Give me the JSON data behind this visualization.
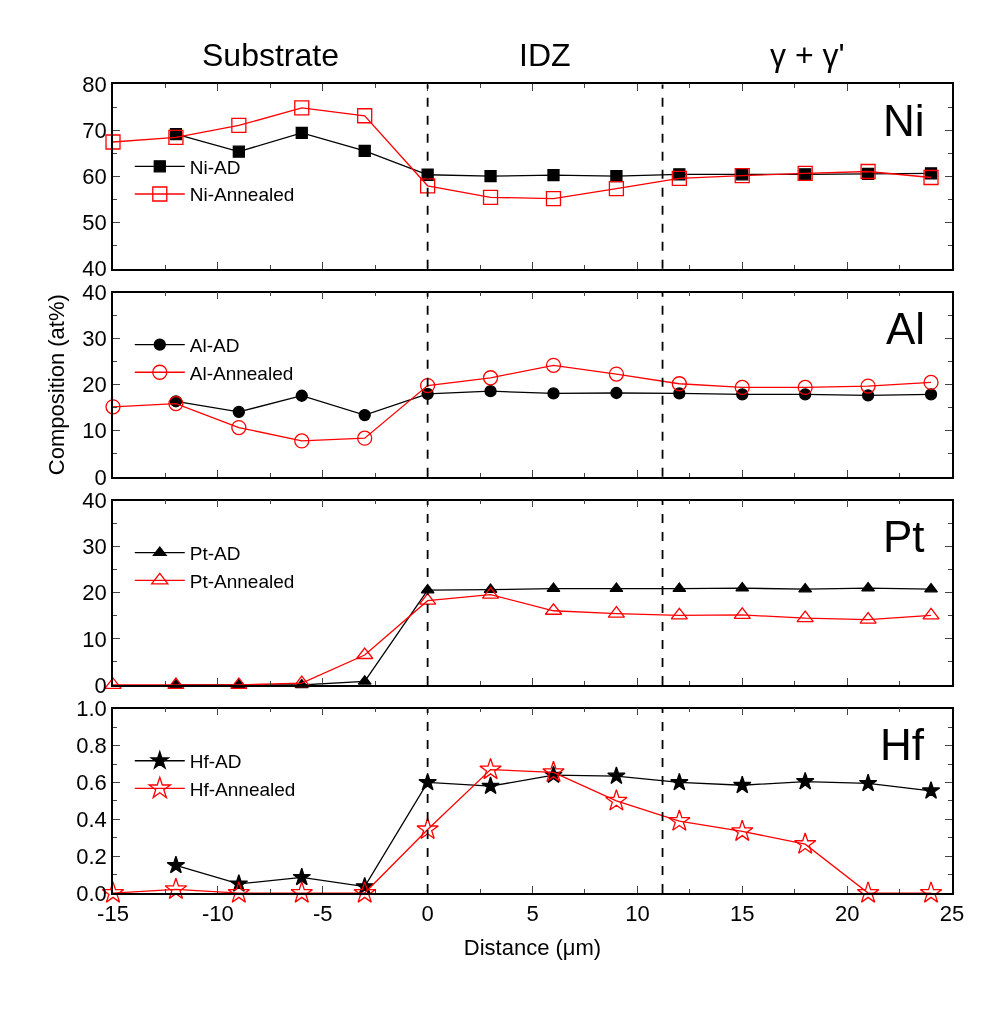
{
  "chart_data": [
    {
      "type": "line",
      "annotations": [
        "Ni",
        "Substrate",
        "IDZ",
        "γ + γ'"
      ],
      "xlim": [
        -15,
        25
      ],
      "xticks": [
        -15,
        -10,
        -5,
        0,
        5,
        10,
        15,
        20,
        25
      ],
      "ylim": [
        40,
        80
      ],
      "yticks": [
        40,
        50,
        60,
        70,
        80
      ],
      "tick_labels": "y",
      "legend": "bottom left",
      "ref_lines": [
        {
          "axis": "x",
          "value": 0,
          "color": "#000000",
          "line_style": "dashed"
        },
        {
          "axis": "x",
          "value": 11.2,
          "color": "#000000",
          "line_style": "dashed"
        }
      ],
      "series": [
        {
          "name": "Ni-AD",
          "color": "#000000",
          "marker": "square",
          "x": [
            -12,
            -9,
            -6,
            -3,
            0,
            3,
            6,
            9,
            12,
            15,
            18,
            21,
            24
          ],
          "values": [
            69.2,
            65.4,
            69.5,
            65.6,
            60.4,
            60.1,
            60.3,
            60.1,
            60.5,
            60.5,
            60.5,
            60.6,
            60.7
          ]
        },
        {
          "name": "Ni-Annealed",
          "color": "#ff0000",
          "marker": "square-open",
          "x": [
            -15,
            -12,
            -9,
            -6,
            -3,
            0,
            3,
            6,
            9,
            12,
            15,
            18,
            21,
            24
          ],
          "values": [
            67.5,
            68.5,
            71.1,
            74.9,
            73.2,
            58.0,
            55.5,
            55.2,
            57.4,
            59.6,
            60.2,
            60.7,
            61.1,
            59.8
          ]
        }
      ]
    },
    {
      "type": "line",
      "ylabel": "Composition (at%)",
      "annotations": [
        "Al"
      ],
      "xlim": [
        -15,
        25
      ],
      "xticks": [
        -15,
        -10,
        -5,
        0,
        5,
        10,
        15,
        20,
        25
      ],
      "ylim": [
        0,
        40
      ],
      "yticks": [
        0,
        10,
        20,
        30,
        40
      ],
      "tick_labels": "y",
      "legend": "top left",
      "ref_lines": [
        {
          "axis": "x",
          "value": 0,
          "color": "#000000",
          "line_style": "dashed"
        },
        {
          "axis": "x",
          "value": 11.2,
          "color": "#000000",
          "line_style": "dashed"
        }
      ],
      "series": [
        {
          "name": "Al-AD",
          "color": "#000000",
          "marker": "circle",
          "x": [
            -12,
            -9,
            -6,
            -3,
            0,
            3,
            6,
            9,
            12,
            15,
            18,
            21,
            24
          ],
          "values": [
            16.4,
            14.1,
            17.6,
            13.4,
            18.0,
            18.6,
            18.1,
            18.2,
            18.1,
            17.9,
            17.9,
            17.7,
            17.9
          ]
        },
        {
          "name": "Al-Annealed",
          "color": "#ff0000",
          "marker": "circle-open",
          "x": [
            -15,
            -12,
            -9,
            -6,
            -3,
            0,
            3,
            6,
            9,
            12,
            15,
            18,
            21,
            24
          ],
          "values": [
            15.2,
            15.9,
            10.7,
            7.8,
            8.4,
            19.8,
            21.5,
            24.2,
            22.3,
            20.2,
            19.4,
            19.4,
            19.7,
            20.5
          ]
        }
      ]
    },
    {
      "type": "line",
      "annotations": [
        "Pt"
      ],
      "xlim": [
        -15,
        25
      ],
      "xticks": [
        -15,
        -10,
        -5,
        0,
        5,
        10,
        15,
        20,
        25
      ],
      "ylim": [
        0,
        40
      ],
      "yticks": [
        0,
        10,
        20,
        30,
        40
      ],
      "tick_labels": "y",
      "legend": "top left",
      "ref_lines": [
        {
          "axis": "x",
          "value": 0,
          "color": "#000000",
          "line_style": "dashed"
        },
        {
          "axis": "x",
          "value": 11.2,
          "color": "#000000",
          "line_style": "dashed"
        }
      ],
      "series": [
        {
          "name": "Pt-AD",
          "color": "#000000",
          "marker": "triangle",
          "x": [
            -12,
            -9,
            -6,
            -3,
            0,
            3,
            6,
            9,
            12,
            15,
            18,
            21,
            24
          ],
          "values": [
            0,
            0,
            0,
            0.8,
            20.6,
            20.7,
            20.9,
            20.9,
            20.9,
            21.0,
            20.8,
            21.0,
            20.8
          ]
        },
        {
          "name": "Pt-Annealed",
          "color": "#ff0000",
          "marker": "triangle-open",
          "x": [
            -15,
            -12,
            -9,
            -6,
            -3,
            0,
            3,
            6,
            9,
            12,
            15,
            18,
            21,
            24
          ],
          "values": [
            0,
            0,
            0,
            0.4,
            6.5,
            18.3,
            19.6,
            16.1,
            15.5,
            15.1,
            15.2,
            14.5,
            14.2,
            15.1
          ]
        }
      ]
    },
    {
      "type": "line",
      "xlabel": "Distance (μm)",
      "annotations": [
        "Hf"
      ],
      "xlim": [
        -15,
        25
      ],
      "xticks": [
        -15,
        -10,
        -5,
        0,
        5,
        10,
        15,
        20,
        25
      ],
      "ylim": [
        0,
        1.0
      ],
      "yticks": [
        {
          "value": 0,
          "label": "0.0"
        },
        0.2,
        0.4,
        0.6,
        0.8,
        {
          "value": 1,
          "label": "1.0"
        }
      ],
      "legend": "top left",
      "ref_lines": [
        {
          "axis": "x",
          "value": 0,
          "color": "#000000",
          "line_style": "dashed"
        },
        {
          "axis": "x",
          "value": 11.2,
          "color": "#000000",
          "line_style": "dashed"
        }
      ],
      "series": [
        {
          "name": "Hf-AD",
          "color": "#000000",
          "marker": "star",
          "x": [
            -12,
            -9,
            -6,
            -3,
            0,
            3,
            6,
            9,
            12,
            15,
            18,
            21,
            24
          ],
          "values": [
            0.15,
            0.05,
            0.085,
            0.035,
            0.6,
            0.58,
            0.64,
            0.635,
            0.6,
            0.585,
            0.605,
            0.595,
            0.555
          ]
        },
        {
          "name": "Hf-Annealed",
          "color": "#ff0000",
          "marker": "star-open",
          "x": [
            -15,
            -12,
            -9,
            -6,
            -3,
            0,
            3,
            6,
            9,
            12,
            15,
            18,
            21,
            24
          ],
          "values": [
            0,
            0.02,
            0,
            0,
            0,
            0.345,
            0.67,
            0.655,
            0.5,
            0.39,
            0.335,
            0.265,
            0,
            0
          ]
        }
      ]
    }
  ]
}
